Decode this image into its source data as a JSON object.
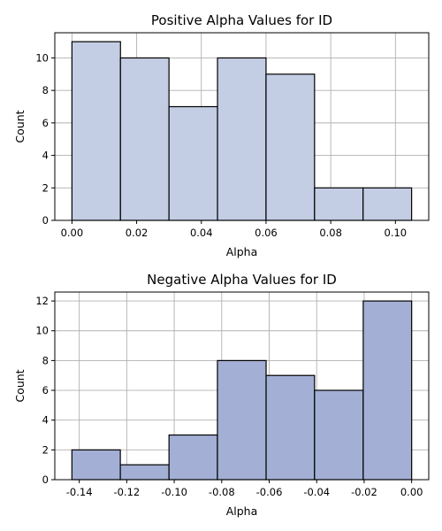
{
  "chart_data": [
    {
      "type": "bar",
      "title": "Positive Alpha Values for ID",
      "xlabel": "Alpha",
      "ylabel": "Count",
      "bin_edges": [
        0.0,
        0.015,
        0.03,
        0.045,
        0.06,
        0.075,
        0.09,
        0.105
      ],
      "values": [
        11,
        10,
        7,
        10,
        9,
        2,
        2
      ],
      "xlim": [
        -0.0053,
        0.1103
      ],
      "ylim": [
        0,
        11.55
      ],
      "xticks": [
        0.0,
        0.02,
        0.04,
        0.06,
        0.08,
        0.1
      ],
      "xtick_labels": [
        "0.00",
        "0.02",
        "0.04",
        "0.06",
        "0.08",
        "0.10"
      ],
      "yticks": [
        0,
        2,
        4,
        6,
        8,
        10
      ],
      "ytick_labels": [
        "0",
        "2",
        "4",
        "6",
        "8",
        "10"
      ],
      "grid": true,
      "bar_color": "#c3cde3"
    },
    {
      "type": "bar",
      "title": "Negative Alpha Values for ID",
      "xlabel": "Alpha",
      "ylabel": "Count",
      "bin_edges": [
        -0.1431,
        -0.1227,
        -0.1022,
        -0.0818,
        -0.0613,
        -0.0409,
        -0.0204,
        0.0
      ],
      "values": [
        2,
        1,
        3,
        8,
        7,
        6,
        12
      ],
      "xlim": [
        -0.1503,
        0.0072
      ],
      "ylim": [
        0,
        12.6
      ],
      "xticks": [
        -0.14,
        -0.12,
        -0.1,
        -0.08,
        -0.06,
        -0.04,
        -0.02,
        0.0
      ],
      "xtick_labels": [
        "-0.14",
        "-0.12",
        "-0.10",
        "-0.08",
        "-0.06",
        "-0.04",
        "-0.02",
        "0.00"
      ],
      "yticks": [
        0,
        2,
        4,
        6,
        8,
        10,
        12
      ],
      "ytick_labels": [
        "0",
        "2",
        "4",
        "6",
        "8",
        "10",
        "12"
      ],
      "grid": true,
      "bar_color": "#a3afd4"
    }
  ]
}
